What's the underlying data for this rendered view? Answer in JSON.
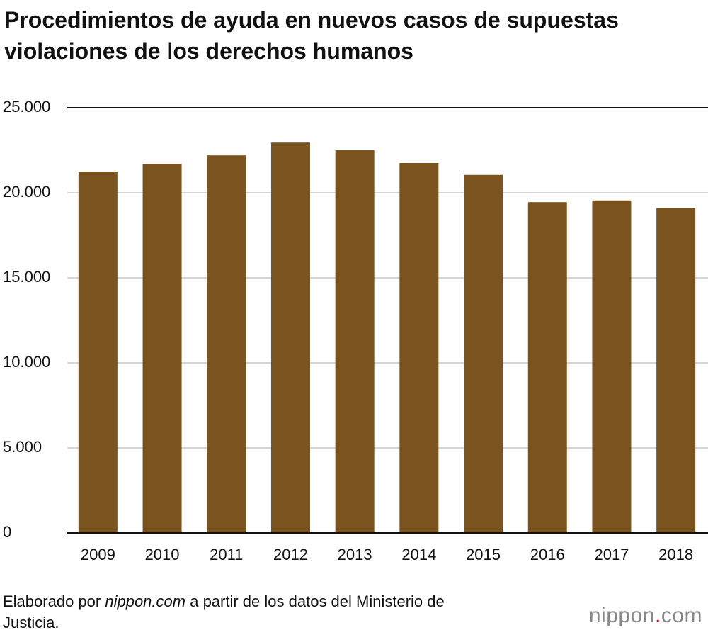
{
  "chart_data": {
    "type": "bar",
    "title": "Procedimientos de ayuda en nuevos casos de supuestas violaciones de los derechos humanos",
    "categories": [
      "2009",
      "2010",
      "2011",
      "2012",
      "2013",
      "2014",
      "2015",
      "2016",
      "2017",
      "2018"
    ],
    "values": [
      21250,
      21700,
      22200,
      22950,
      22500,
      21750,
      21050,
      19450,
      19550,
      19100
    ],
    "color": "#7a531e",
    "ylim": [
      0,
      25000
    ],
    "yticks": [
      0,
      {
        "value": 5000,
        "label": "5.000"
      },
      {
        "value": 10000,
        "label": "10.000"
      },
      {
        "value": 15000,
        "label": "15.000"
      },
      {
        "value": 20000,
        "label": "20.000"
      },
      {
        "value": 25000,
        "label": "25.000"
      }
    ],
    "grid": true,
    "source": [
      "Elaborado por",
      "nippon.com",
      "a partir de los datos del Ministerio de Justicia."
    ],
    "logo": [
      "nippon",
      ".",
      "com"
    ]
  }
}
